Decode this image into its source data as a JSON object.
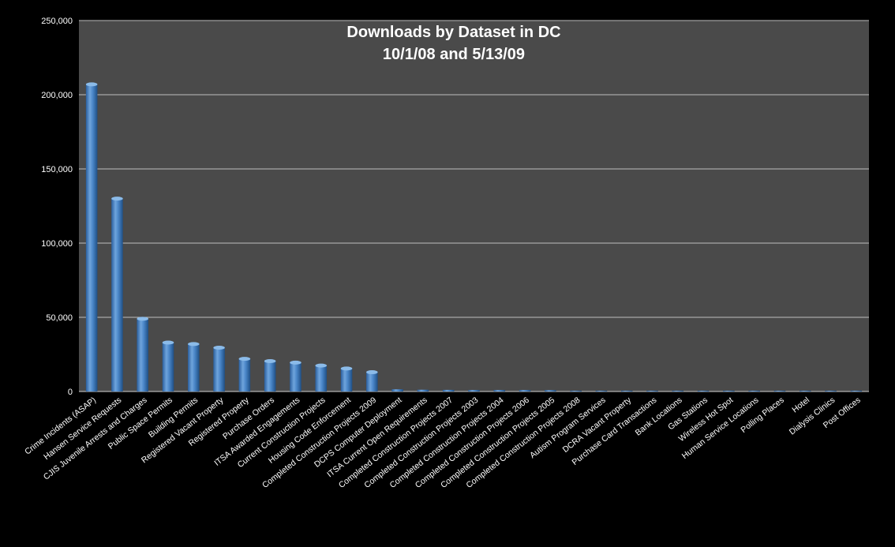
{
  "chart_data": {
    "type": "bar",
    "title": "Downloads by Dataset in DC",
    "subtitle": "10/1/08 and 5/13/09",
    "xlabel": "",
    "ylabel": "",
    "ylim": [
      0,
      250000
    ],
    "yticks": [
      "0",
      "50,000",
      "100,000",
      "150,000",
      "200,000",
      "250,000"
    ],
    "grid": true,
    "legend": "none",
    "colors": {
      "background": "#000000",
      "plot_area": "#4a4a4a",
      "bar": "#4a86c8",
      "bar_light": "#7fb0e3",
      "bar_dark": "#1f4f85",
      "grid": "#bfbfbf",
      "text": "#ffffff"
    },
    "categories": [
      "Crime Incidents (ASAP)",
      "Hansen Service Requests",
      "CJIS Juvenile Arrests and Charges",
      "Public Space Permits",
      "Building Permits",
      "Registered Vacant Property",
      "Registered Property",
      "Purchase Orders",
      "ITSA Awarded Engagements",
      "Current Construction Projects",
      "Housing Code Enforcement",
      "Completed Construction Projects 2009",
      "DCPS Computer Deployment",
      "ITSA Current Open Requirements",
      "Completed Construction Projects 2007",
      "Completed Construction Projects 2003",
      "Completed Construction Projects 2004",
      "Completed Construction Projects 2006",
      "Completed Construction Projects 2005",
      "Completed Construction Projects 2008",
      "Autism Program Services",
      "DCRA Vacant Property",
      "Purchase Card Transactions",
      "Bank Locations",
      "Gas Stations",
      "Wireless Hot Spot",
      "Human Service Locations",
      "Polling Places",
      "Hotel",
      "Dialysis Clinics",
      "Post Offices"
    ],
    "values": [
      207000,
      130000,
      49000,
      33000,
      32000,
      29500,
      22000,
      20500,
      19500,
      17500,
      15500,
      13000,
      1500,
      1200,
      1100,
      1000,
      1000,
      1000,
      900,
      300,
      300,
      250,
      250,
      200,
      200,
      200,
      200,
      200,
      150,
      150,
      150
    ]
  }
}
